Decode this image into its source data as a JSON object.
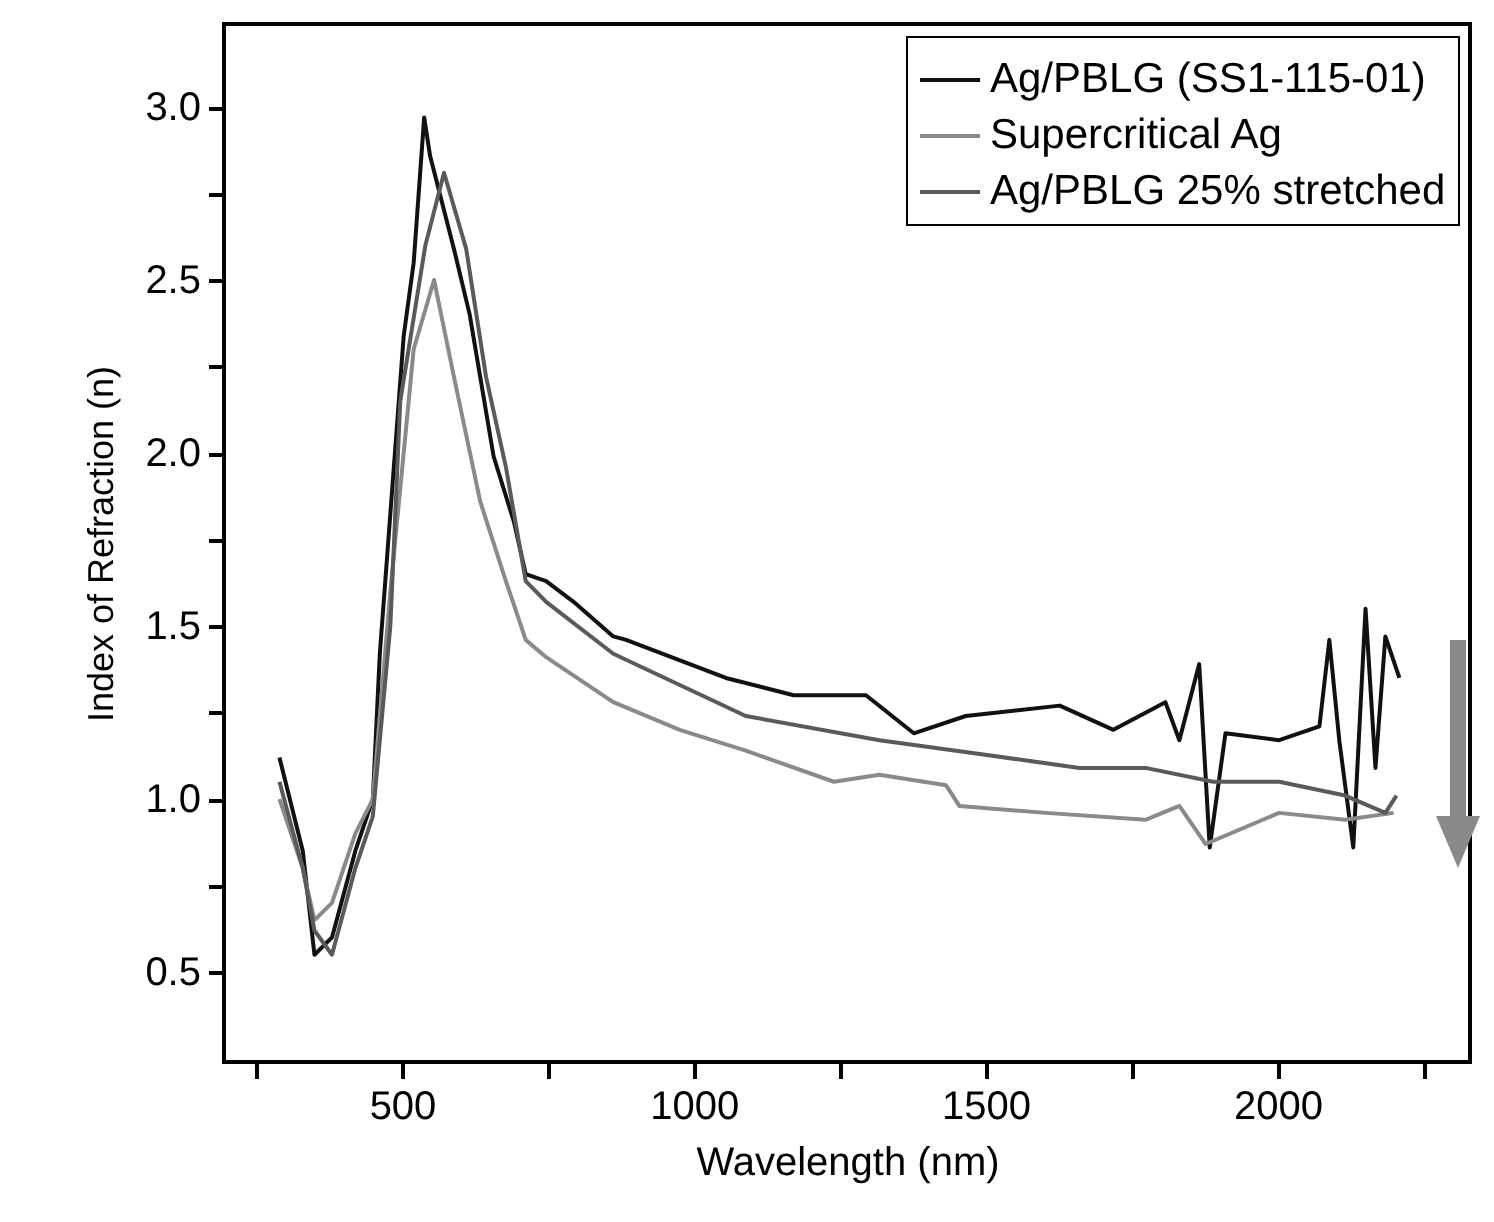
{
  "chart_data": {
    "type": "line",
    "xlabel": "Wavelength (nm)",
    "ylabel": "Index of Refraction (n)",
    "xlim": [
      195,
      2330
    ],
    "ylim": [
      0.24,
      3.24
    ],
    "xticks": [
      {
        "value": 250,
        "label": null
      },
      500,
      {
        "value": 750,
        "label": null
      },
      1000,
      {
        "value": 1250,
        "label": null
      },
      1500,
      {
        "value": 1750,
        "label": null
      },
      2000,
      {
        "value": 2250,
        "label": null
      }
    ],
    "yticks": [
      0.5,
      {
        "value": 0.75,
        "label": null
      },
      {
        "value": 1,
        "label": "1.0"
      },
      {
        "value": 1.25,
        "label": null
      },
      1.5,
      {
        "value": 1.75,
        "label": null
      },
      {
        "value": 2,
        "label": "2.0"
      },
      {
        "value": 2.25,
        "label": null
      },
      2.5,
      {
        "value": 2.75,
        "label": null
      },
      {
        "value": 3,
        "label": "3.0"
      }
    ],
    "legend": "top right",
    "grid": false,
    "line_style": "solid",
    "marker": "none",
    "series": [
      {
        "name": "Ag/PBLG (SS1-115-01)",
        "color": "#111111",
        "x": [
          290,
          330,
          350,
          380,
          420,
          450,
          462,
          503,
          520,
          538,
          548,
          589,
          616,
          657,
          692,
          712,
          747,
          794,
          862,
          884,
          1055,
          1171,
          1295,
          1377,
          1466,
          1627,
          1719,
          1808,
          1832,
          1866,
          1884,
          1911,
          2003,
          2072,
          2089,
          2106,
          2130,
          2151,
          2168,
          2185,
          2209
        ],
        "values": [
          1.12,
          0.85,
          0.55,
          0.6,
          0.85,
          1.0,
          1.42,
          2.34,
          2.55,
          2.97,
          2.86,
          2.59,
          2.4,
          1.99,
          1.8,
          1.65,
          1.63,
          1.57,
          1.47,
          1.46,
          1.35,
          1.3,
          1.3,
          1.19,
          1.24,
          1.27,
          1.2,
          1.28,
          1.17,
          1.39,
          0.86,
          1.19,
          1.17,
          1.21,
          1.46,
          1.17,
          0.86,
          1.55,
          1.09,
          1.47,
          1.35
        ]
      },
      {
        "name": "Supercritical Ag",
        "color": "#8a8a8a",
        "x": [
          290,
          330,
          350,
          380,
          420,
          450,
          480,
          520,
          555,
          589,
          634,
          678,
          712,
          747,
          862,
          976,
          1089,
          1240,
          1318,
          1432,
          1455,
          1603,
          1774,
          1832,
          1877,
          2003,
          2116,
          2199
        ],
        "values": [
          1.0,
          0.8,
          0.65,
          0.7,
          0.9,
          1.0,
          1.6,
          2.3,
          2.5,
          2.22,
          1.86,
          1.63,
          1.46,
          1.41,
          1.28,
          1.2,
          1.14,
          1.05,
          1.07,
          1.04,
          0.98,
          0.96,
          0.94,
          0.98,
          0.87,
          0.96,
          0.94,
          0.96
        ]
      },
      {
        "name": "Ag/PBLG 25% stretched",
        "color": "#5a5a5a",
        "x": [
          290,
          330,
          350,
          380,
          420,
          450,
          480,
          497,
          540,
          572,
          610,
          644,
          678,
          712,
          747,
          862,
          1089,
          1318,
          1490,
          1661,
          1774,
          1890,
          2003,
          2116,
          2185,
          2204
        ],
        "values": [
          1.05,
          0.8,
          0.62,
          0.55,
          0.8,
          0.95,
          1.5,
          2.15,
          2.6,
          2.81,
          2.59,
          2.22,
          1.96,
          1.63,
          1.57,
          1.42,
          1.24,
          1.17,
          1.13,
          1.09,
          1.09,
          1.05,
          1.05,
          1.01,
          0.96,
          1.01
        ]
      }
    ]
  }
}
